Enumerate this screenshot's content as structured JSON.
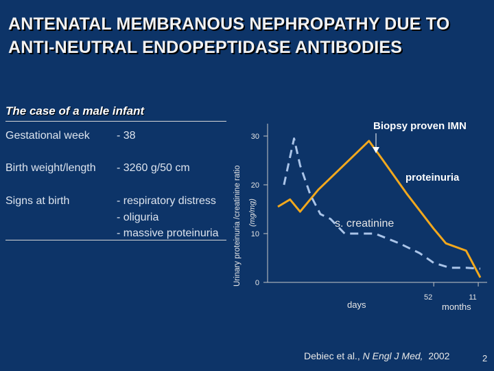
{
  "title_line1": "ANTENATAL MEMBRANOUS NEPHROPATHY DUE TO",
  "title_line2": "ANTI-NEUTRAL ENDOPEPTIDASE ANTIBODIES",
  "case": {
    "heading": "The case of a male infant",
    "rows": [
      {
        "label": "Gestational week",
        "value": "- 38"
      },
      {
        "label": "Birth weight/length",
        "value": "- 3260 g/50 cm"
      },
      {
        "label": "Signs at birth",
        "value": "- respiratory distress"
      },
      {
        "label": "",
        "value": "- oliguria"
      },
      {
        "label": "",
        "value": "- massive proteinuria"
      }
    ]
  },
  "source": "Debiec et al., N Engl J Med, 2002",
  "page_number": "2",
  "chart_data": {
    "type": "line",
    "ylabel": "Urinary proteinuria /creatinine ratio",
    "yunit": "(mg/mg)",
    "yticks": [
      "0",
      "10",
      "20",
      "30"
    ],
    "ylim": [
      0,
      30
    ],
    "xlabel_days": "days",
    "xlabel_months": "months",
    "xticks": [
      {
        "label": "52",
        "pos": 0.77
      },
      {
        "label": "11",
        "pos": 0.99
      }
    ],
    "annotations": {
      "biopsy": "Biopsy proven IMN"
    },
    "series": [
      {
        "name": "proteinuria",
        "color": "#f2a81d",
        "style": "solid",
        "points": [
          [
            0.0,
            15.5
          ],
          [
            0.06,
            17
          ],
          [
            0.11,
            14.5
          ],
          [
            0.2,
            19
          ],
          [
            0.45,
            29
          ],
          [
            0.52,
            25
          ],
          [
            0.64,
            18
          ],
          [
            0.77,
            11
          ],
          [
            0.83,
            8
          ],
          [
            0.93,
            6.5
          ],
          [
            1.0,
            1
          ]
        ]
      },
      {
        "name": "s. creatinine",
        "color": "#aac4e8",
        "style": "dashed",
        "points": [
          [
            0.03,
            20
          ],
          [
            0.08,
            29.5
          ],
          [
            0.11,
            24
          ],
          [
            0.16,
            18
          ],
          [
            0.21,
            14
          ],
          [
            0.26,
            13
          ],
          [
            0.33,
            10
          ],
          [
            0.48,
            10
          ],
          [
            0.6,
            8
          ],
          [
            0.7,
            6
          ],
          [
            0.77,
            4
          ],
          [
            0.85,
            3
          ],
          [
            0.93,
            3
          ],
          [
            1.0,
            2.8
          ]
        ]
      }
    ]
  }
}
